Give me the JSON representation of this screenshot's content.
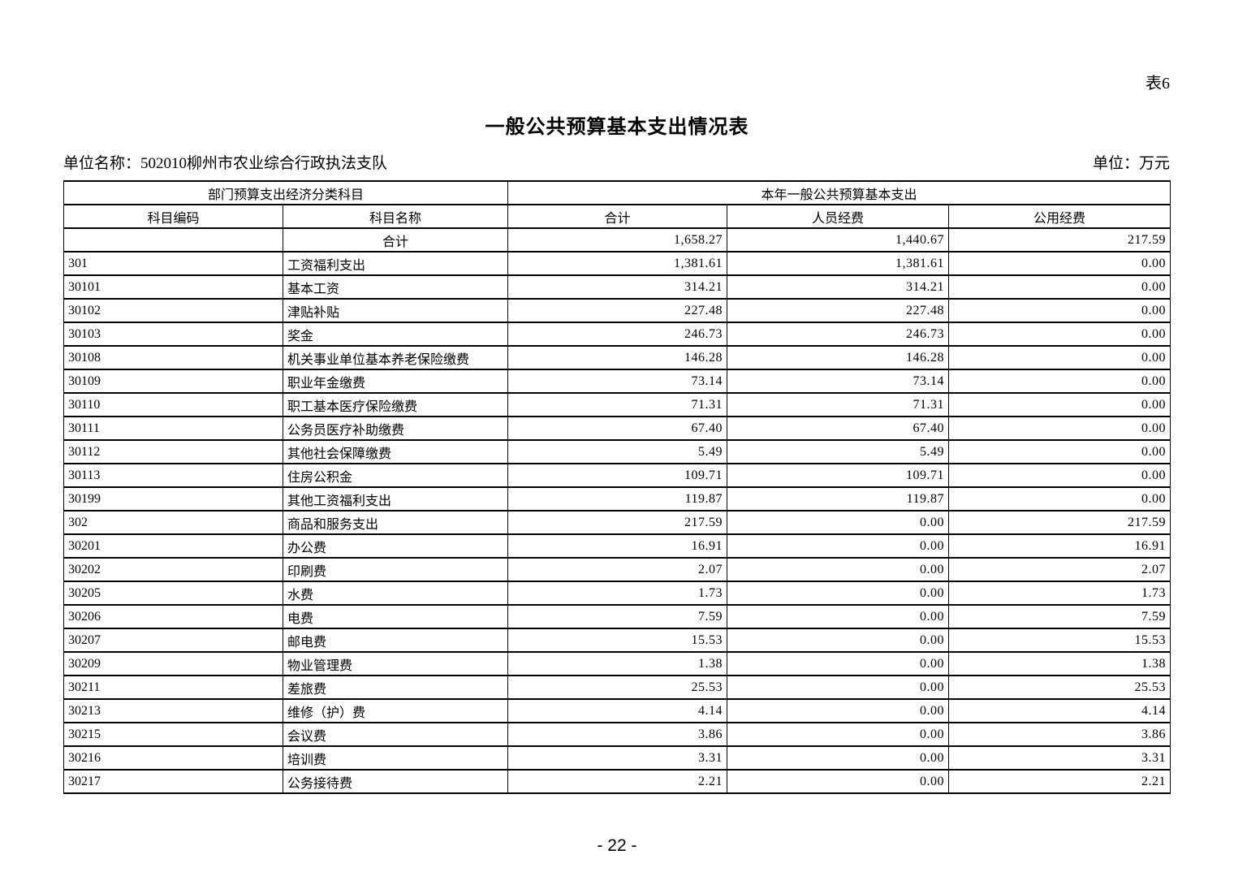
{
  "page": {
    "table_label": "表6",
    "title": "一般公共预算基本支出情况表",
    "unit_name_label": "单位名称：502010柳州市农业综合行政执法支队",
    "unit_label": "单位：万元",
    "page_number": "- 22 -"
  },
  "table": {
    "group_headers": [
      "部门预算支出经济分类科目",
      "本年一般公共预算基本支出"
    ],
    "columns": [
      "科目编码",
      "科目名称",
      "合计",
      "人员经费",
      "公用经费"
    ],
    "rows": [
      {
        "code": "",
        "name": "合计",
        "total": "1,658.27",
        "personnel": "1,440.67",
        "public": "217.59",
        "name_centered": true
      },
      {
        "code": "301",
        "name": "工资福利支出",
        "total": "1,381.61",
        "personnel": "1,381.61",
        "public": "0.00"
      },
      {
        "code": "30101",
        "name": "基本工资",
        "total": "314.21",
        "personnel": "314.21",
        "public": "0.00"
      },
      {
        "code": "30102",
        "name": "津贴补贴",
        "total": "227.48",
        "personnel": "227.48",
        "public": "0.00"
      },
      {
        "code": "30103",
        "name": "奖金",
        "total": "246.73",
        "personnel": "246.73",
        "public": "0.00"
      },
      {
        "code": "30108",
        "name": "机关事业单位基本养老保险缴费",
        "total": "146.28",
        "personnel": "146.28",
        "public": "0.00"
      },
      {
        "code": "30109",
        "name": "职业年金缴费",
        "total": "73.14",
        "personnel": "73.14",
        "public": "0.00"
      },
      {
        "code": "30110",
        "name": "职工基本医疗保险缴费",
        "total": "71.31",
        "personnel": "71.31",
        "public": "0.00"
      },
      {
        "code": "30111",
        "name": "公务员医疗补助缴费",
        "total": "67.40",
        "personnel": "67.40",
        "public": "0.00"
      },
      {
        "code": "30112",
        "name": "其他社会保障缴费",
        "total": "5.49",
        "personnel": "5.49",
        "public": "0.00"
      },
      {
        "code": "30113",
        "name": "住房公积金",
        "total": "109.71",
        "personnel": "109.71",
        "public": "0.00"
      },
      {
        "code": "30199",
        "name": "其他工资福利支出",
        "total": "119.87",
        "personnel": "119.87",
        "public": "0.00"
      },
      {
        "code": "302",
        "name": "商品和服务支出",
        "total": "217.59",
        "personnel": "0.00",
        "public": "217.59"
      },
      {
        "code": "30201",
        "name": "办公费",
        "total": "16.91",
        "personnel": "0.00",
        "public": "16.91"
      },
      {
        "code": "30202",
        "name": "印刷费",
        "total": "2.07",
        "personnel": "0.00",
        "public": "2.07"
      },
      {
        "code": "30205",
        "name": "水费",
        "total": "1.73",
        "personnel": "0.00",
        "public": "1.73"
      },
      {
        "code": "30206",
        "name": "电费",
        "total": "7.59",
        "personnel": "0.00",
        "public": "7.59"
      },
      {
        "code": "30207",
        "name": "邮电费",
        "total": "15.53",
        "personnel": "0.00",
        "public": "15.53"
      },
      {
        "code": "30209",
        "name": "物业管理费",
        "total": "1.38",
        "personnel": "0.00",
        "public": "1.38"
      },
      {
        "code": "30211",
        "name": "差旅费",
        "total": "25.53",
        "personnel": "0.00",
        "public": "25.53"
      },
      {
        "code": "30213",
        "name": "维修（护）费",
        "total": "4.14",
        "personnel": "0.00",
        "public": "4.14"
      },
      {
        "code": "30215",
        "name": "会议费",
        "total": "3.86",
        "personnel": "0.00",
        "public": "3.86"
      },
      {
        "code": "30216",
        "name": "培训费",
        "total": "3.31",
        "personnel": "0.00",
        "public": "3.31"
      },
      {
        "code": "30217",
        "name": "公务接待费",
        "total": "2.21",
        "personnel": "0.00",
        "public": "2.21"
      }
    ]
  }
}
